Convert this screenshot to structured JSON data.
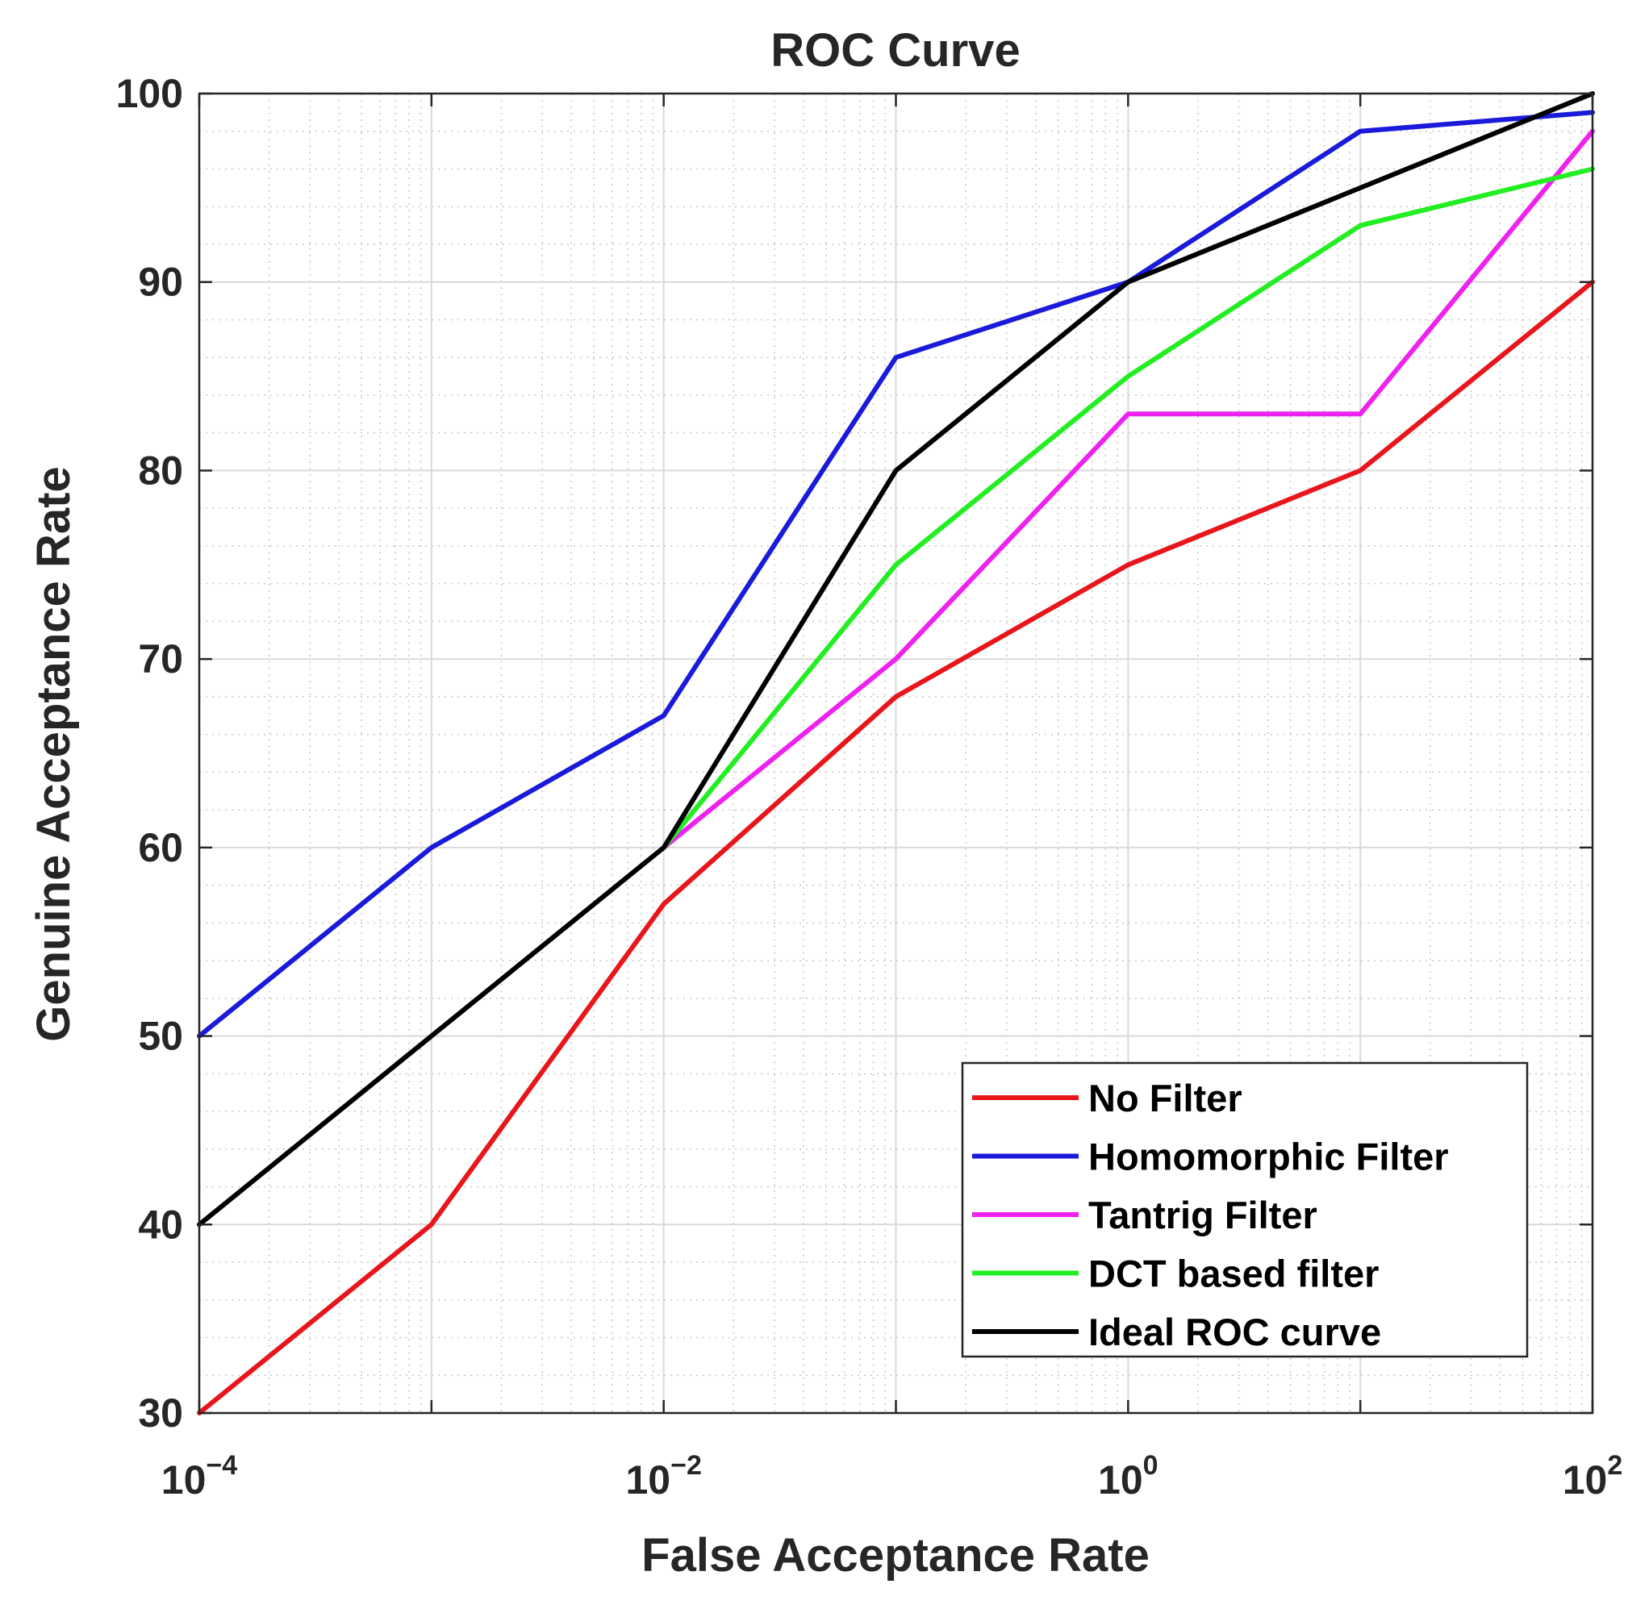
{
  "chart_data": {
    "type": "line",
    "title": "ROC Curve",
    "xlabel": "False Acceptance Rate",
    "ylabel": "Genuine Acceptance Rate",
    "xscale": "log",
    "xlim": [
      0.0001,
      100
    ],
    "ylim": [
      30,
      100
    ],
    "grid": true,
    "minor_grid": true,
    "legend_position": "bottom-right",
    "xticks": [
      {
        "base": "10",
        "exp": "−4"
      },
      {
        "base": "10",
        "exp": "−2"
      },
      {
        "base": "10",
        "exp": "0"
      },
      {
        "base": "10",
        "exp": "2"
      }
    ],
    "yticks": [
      "30",
      "40",
      "50",
      "60",
      "70",
      "80",
      "90",
      "100"
    ],
    "x": [
      0.0001,
      0.001,
      0.01,
      0.1,
      1,
      10,
      100
    ],
    "series": [
      {
        "name": "No Filter",
        "color": "#e8161b",
        "values": [
          30,
          40,
          57,
          68,
          75,
          80,
          90
        ]
      },
      {
        "name": "Homomorphic Filter",
        "color": "#1a1adb",
        "values": [
          50,
          60,
          67,
          86,
          90,
          98,
          99
        ]
      },
      {
        "name": "Tantrig Filter",
        "color": "#ee22ee",
        "values": [
          null,
          null,
          60,
          70,
          83,
          83,
          98
        ]
      },
      {
        "name": "DCT based filter",
        "color": "#22ee22",
        "values": [
          null,
          null,
          60,
          75,
          85,
          93,
          96
        ]
      },
      {
        "name": "Ideal ROC curve",
        "color": "#000000",
        "values": [
          40,
          50,
          60,
          80,
          90,
          95,
          100
        ]
      }
    ]
  }
}
